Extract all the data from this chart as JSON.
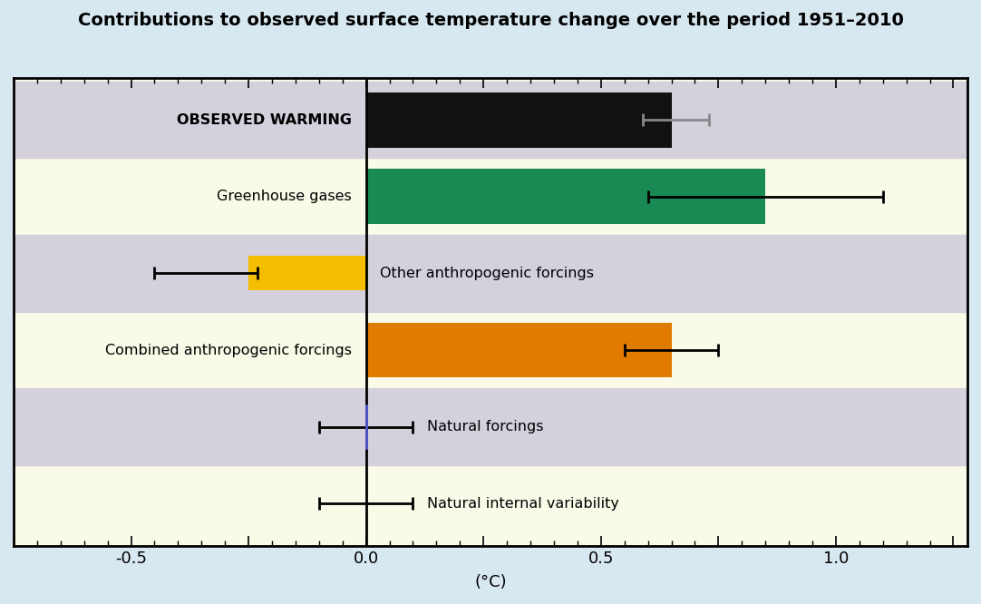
{
  "title": "Contributions to observed surface temperature change over the period 1951–2010",
  "xlabel": "(°C)",
  "categories": [
    "Natural internal variability",
    "Natural forcings",
    "Combined anthropogenic forcings",
    "Other anthropogenic forcings",
    "Greenhouse gases",
    "OBSERVED WARMING"
  ],
  "bar_values": [
    0,
    0,
    0.65,
    -0.25,
    0.85,
    0.65
  ],
  "error_centers": [
    0.0,
    0.0,
    0.65,
    -0.25,
    0.85,
    0.65
  ],
  "bar_xerr_left": [
    0.1,
    0.1,
    0.1,
    0.2,
    0.25,
    0.06
  ],
  "bar_xerr_right": [
    0.1,
    0.1,
    0.1,
    0.02,
    0.25,
    0.08
  ],
  "bar_colors": [
    "none",
    "none",
    "#E07B00",
    "#F5BE00",
    "#1A8A55",
    "#111111"
  ],
  "bar_heights": [
    0.38,
    0.38,
    0.72,
    0.45,
    0.72,
    0.72
  ],
  "shaded_rows": [
    5,
    3,
    1
  ],
  "shaded_color": "#D4D0DC",
  "bg_color": "#FAFAE8",
  "fig_bg_color": "#D8E8F0",
  "xlim": [
    -0.75,
    1.25
  ],
  "xticks": [
    -0.5,
    -0.25,
    0.0,
    0.25,
    0.5,
    0.75,
    1.0,
    1.25
  ],
  "xticklabels": [
    "-0.5",
    "",
    "0.0",
    "",
    "0.5",
    "",
    "1.0",
    ""
  ],
  "error_cap_size": 5,
  "observed_err_color": "#888888",
  "blue_line_color": "#5555CC"
}
